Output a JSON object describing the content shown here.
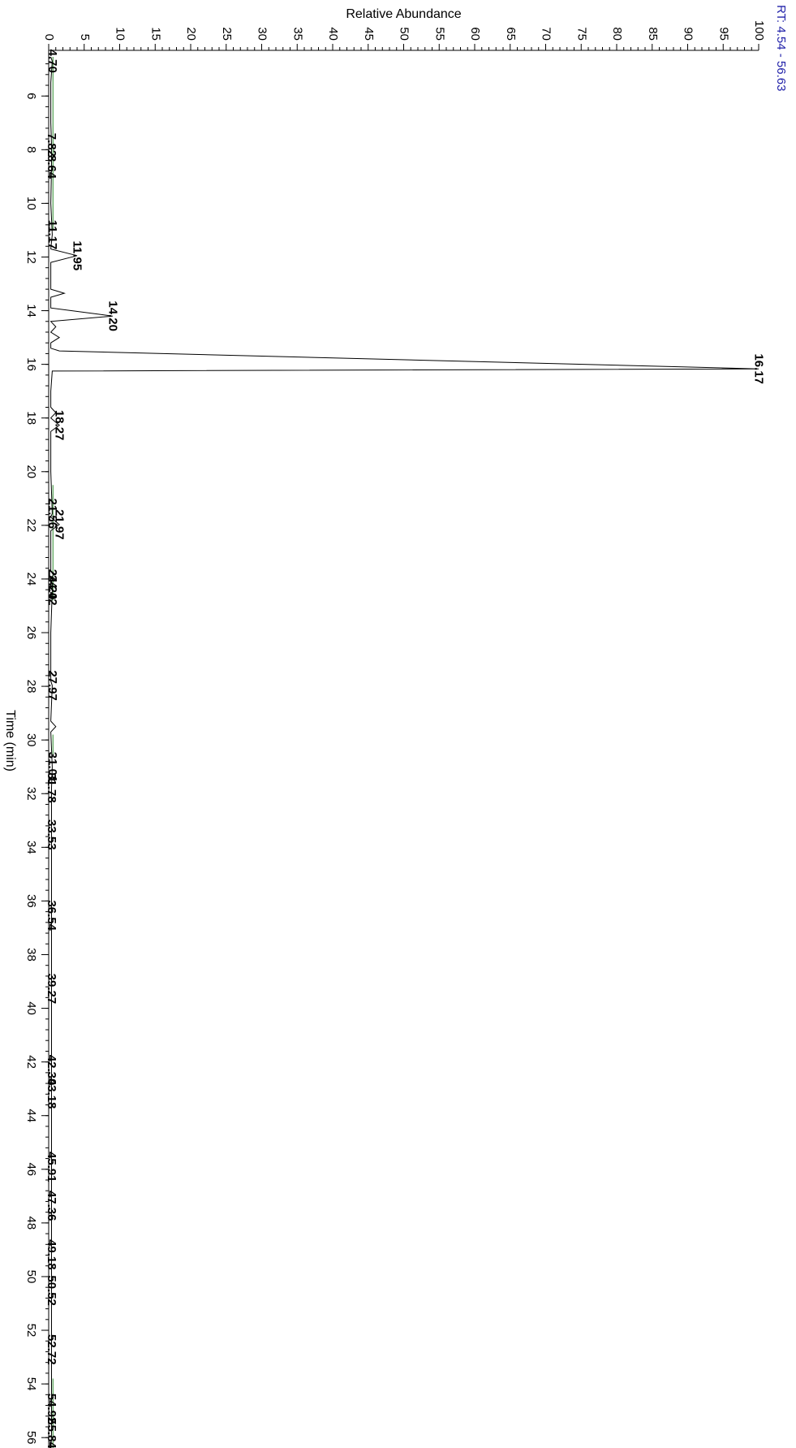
{
  "chart_data": {
    "type": "line",
    "orientation": "rotated-90",
    "title": "",
    "rt_range_label": "RT: 4.54 - 56.63",
    "xlabel": "Time (min)",
    "ylabel": "Relative Abundance",
    "xlim": [
      4.54,
      56.63
    ],
    "ylim": [
      0,
      100
    ],
    "x_ticks": [
      6,
      8,
      10,
      12,
      14,
      16,
      18,
      20,
      22,
      24,
      26,
      28,
      30,
      32,
      34,
      36,
      38,
      40,
      42,
      44,
      46,
      48,
      50,
      52,
      54,
      56
    ],
    "y_ticks": [
      0,
      5,
      10,
      15,
      20,
      25,
      30,
      35,
      40,
      45,
      50,
      55,
      60,
      65,
      70,
      75,
      80,
      85,
      90,
      95,
      100
    ],
    "peaks": [
      {
        "rt": 4.7,
        "label": "4.70",
        "abundance": 0.5
      },
      {
        "rt": 7.82,
        "label": "7.82",
        "abundance": 0.4
      },
      {
        "rt": 8.64,
        "label": "8.64",
        "abundance": 0.4
      },
      {
        "rt": 11.17,
        "label": "11.17",
        "abundance": 0.5
      },
      {
        "rt": 11.95,
        "label": "11.95",
        "abundance": 4.0
      },
      {
        "rt": 14.2,
        "label": "14.20",
        "abundance": 9.0
      },
      {
        "rt": 16.17,
        "label": "16.17",
        "abundance": 100
      },
      {
        "rt": 18.27,
        "label": "18.27",
        "abundance": 1.5
      },
      {
        "rt": 21.56,
        "label": "21.56",
        "abundance": 0.5
      },
      {
        "rt": 21.97,
        "label": "21.97",
        "abundance": 1.5
      },
      {
        "rt": 24.2,
        "label": "24.20",
        "abundance": 0.5
      },
      {
        "rt": 24.42,
        "label": "24.42",
        "abundance": 0.5
      },
      {
        "rt": 27.97,
        "label": "27.97",
        "abundance": 0.5
      },
      {
        "rt": 31.01,
        "label": "31.01",
        "abundance": 0.5
      },
      {
        "rt": 31.78,
        "label": "31.78",
        "abundance": 0.4
      },
      {
        "rt": 33.53,
        "label": "33.53",
        "abundance": 0.4
      },
      {
        "rt": 36.54,
        "label": "36.54",
        "abundance": 0.4
      },
      {
        "rt": 39.27,
        "label": "39.27",
        "abundance": 0.4
      },
      {
        "rt": 42.3,
        "label": "42.30",
        "abundance": 0.4
      },
      {
        "rt": 43.18,
        "label": "43.18",
        "abundance": 0.4
      },
      {
        "rt": 45.91,
        "label": "45.91",
        "abundance": 0.4
      },
      {
        "rt": 47.36,
        "label": "47.36",
        "abundance": 0.4
      },
      {
        "rt": 49.18,
        "label": "49.18",
        "abundance": 0.4
      },
      {
        "rt": 50.52,
        "label": "50.52",
        "abundance": 0.4
      },
      {
        "rt": 52.72,
        "label": "52.72",
        "abundance": 0.4
      },
      {
        "rt": 54.92,
        "label": "54.92",
        "abundance": 0.4
      },
      {
        "rt": 55.84,
        "label": "55.84",
        "abundance": 0.4
      }
    ],
    "trace": [
      [
        4.54,
        0.3
      ],
      [
        4.7,
        0.5
      ],
      [
        5.5,
        0.3
      ],
      [
        7.0,
        0.3
      ],
      [
        7.82,
        0.4
      ],
      [
        8.64,
        0.4
      ],
      [
        10.0,
        0.3
      ],
      [
        11.17,
        0.5
      ],
      [
        11.7,
        0.3
      ],
      [
        11.95,
        4.0
      ],
      [
        12.2,
        0.3
      ],
      [
        13.2,
        0.3
      ],
      [
        13.35,
        2.2
      ],
      [
        13.5,
        0.3
      ],
      [
        13.9,
        0.3
      ],
      [
        14.2,
        9.0
      ],
      [
        14.4,
        0.3
      ],
      [
        14.6,
        1.0
      ],
      [
        14.8,
        0.3
      ],
      [
        15.0,
        1.5
      ],
      [
        15.2,
        0.3
      ],
      [
        15.4,
        0.3
      ],
      [
        15.5,
        1.5
      ],
      [
        16.17,
        100
      ],
      [
        16.25,
        0.5
      ],
      [
        17.0,
        0.3
      ],
      [
        17.6,
        0.3
      ],
      [
        17.8,
        1.0
      ],
      [
        18.0,
        0.3
      ],
      [
        18.27,
        1.5
      ],
      [
        18.5,
        0.3
      ],
      [
        20.0,
        0.3
      ],
      [
        21.56,
        0.5
      ],
      [
        21.7,
        0.3
      ],
      [
        21.97,
        1.5
      ],
      [
        22.2,
        0.3
      ],
      [
        23.7,
        0.3
      ],
      [
        23.8,
        0.8
      ],
      [
        24.0,
        0.3
      ],
      [
        24.2,
        0.5
      ],
      [
        24.42,
        0.5
      ],
      [
        26.0,
        0.3
      ],
      [
        27.8,
        0.3
      ],
      [
        27.97,
        0.5
      ],
      [
        29.3,
        0.3
      ],
      [
        29.5,
        1.0
      ],
      [
        29.7,
        0.3
      ],
      [
        31.01,
        0.5
      ],
      [
        31.78,
        0.4
      ],
      [
        33.53,
        0.4
      ],
      [
        36.54,
        0.4
      ],
      [
        39.27,
        0.4
      ],
      [
        42.3,
        0.4
      ],
      [
        43.18,
        0.4
      ],
      [
        45.91,
        0.4
      ],
      [
        47.36,
        0.4
      ],
      [
        49.18,
        0.4
      ],
      [
        50.52,
        0.4
      ],
      [
        52.72,
        0.4
      ],
      [
        54.92,
        0.4
      ],
      [
        55.84,
        0.4
      ],
      [
        56.63,
        0.3
      ]
    ],
    "colors": {
      "trace": "#000000",
      "baseline": "#2e8b2e",
      "rt_label": "#1f1fa8",
      "axis": "#000000"
    },
    "grid": false,
    "legend": "none"
  }
}
